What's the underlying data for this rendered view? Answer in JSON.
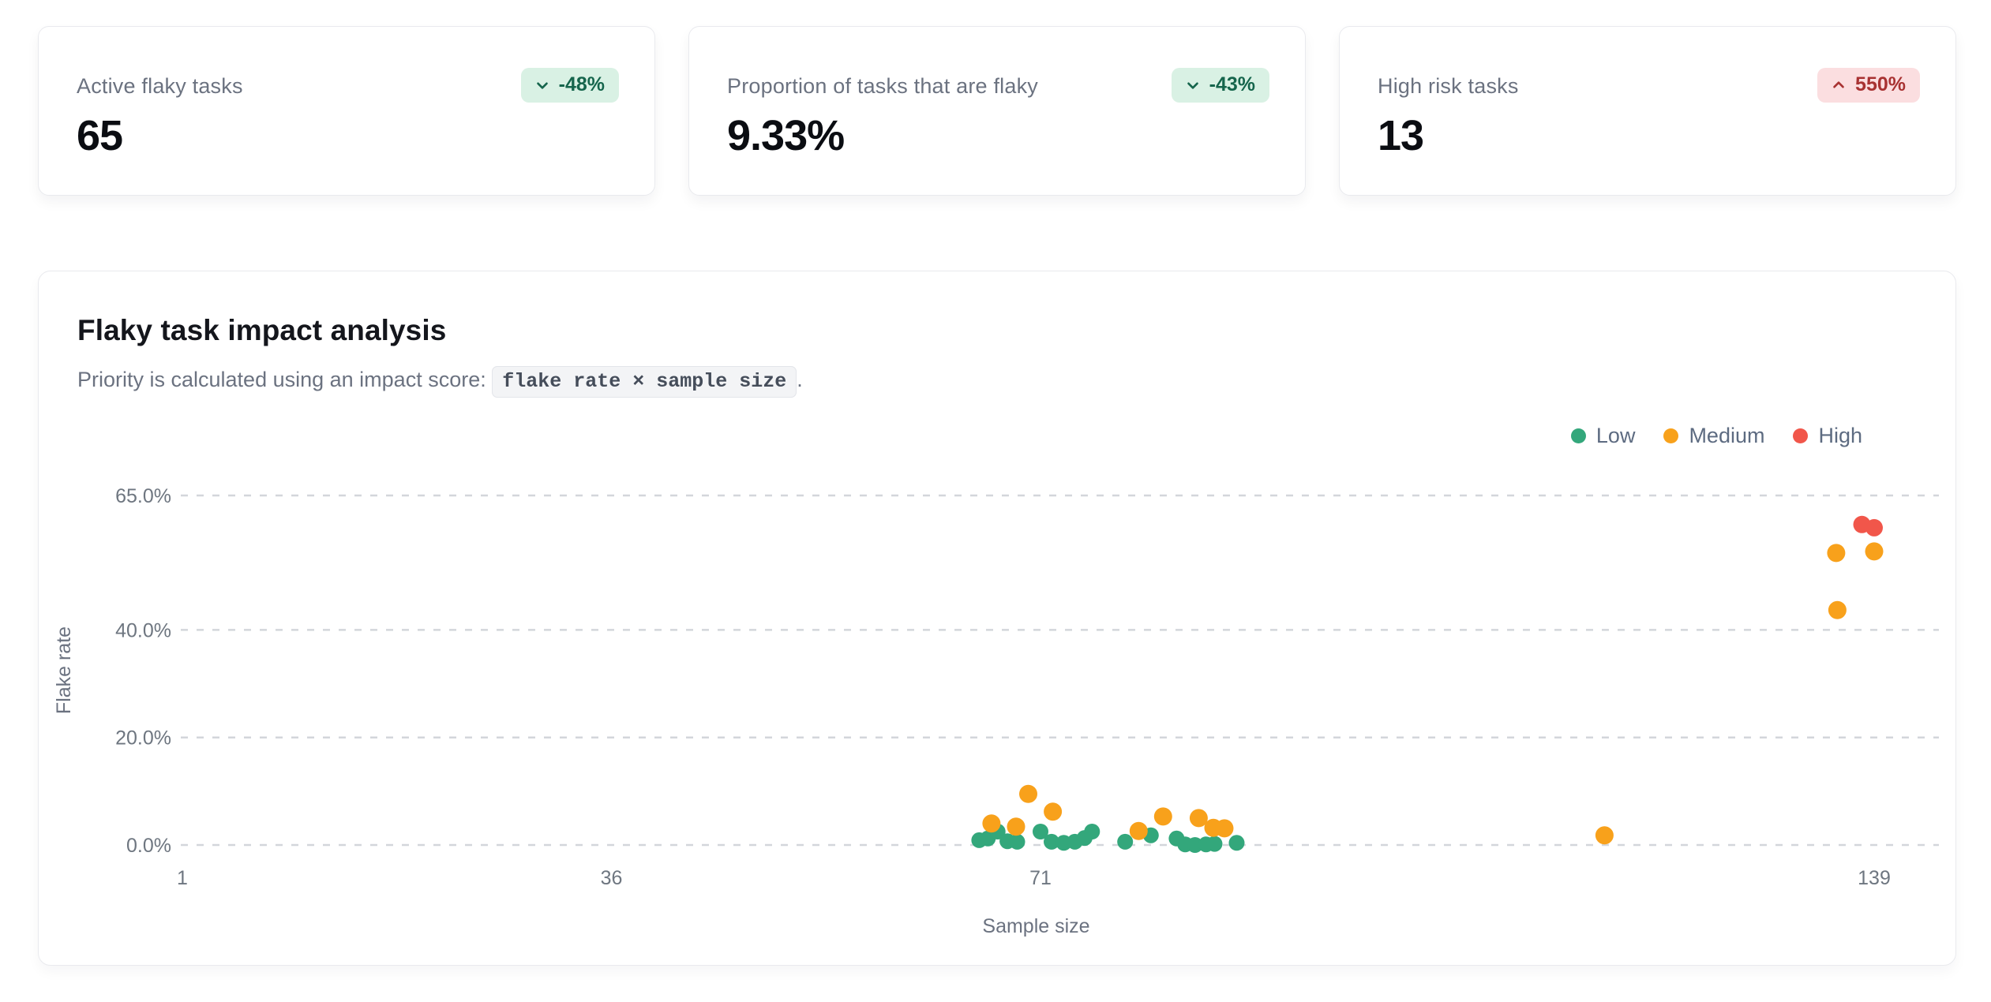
{
  "stats": [
    {
      "label": "Active flaky tasks",
      "value": "65",
      "delta": "-48%",
      "direction": "down",
      "tone": "good"
    },
    {
      "label": "Proportion of tasks that are flaky",
      "value": "9.33%",
      "delta": "-43%",
      "direction": "down",
      "tone": "good"
    },
    {
      "label": "High risk tasks",
      "value": "13",
      "delta": "550%",
      "direction": "up",
      "tone": "bad"
    }
  ],
  "chart": {
    "title": "Flaky task impact analysis",
    "subtitle_prefix": "Priority is calculated using an impact score: ",
    "formula": "flake rate × sample size",
    "subtitle_suffix": "."
  },
  "chart_data": {
    "type": "scatter",
    "title": "Flaky task impact analysis",
    "xlabel": "Sample size",
    "ylabel": "Flake rate",
    "xlim": [
      1,
      139
    ],
    "ylim": [
      0,
      65
    ],
    "x_ticks": [
      {
        "value": 1,
        "label": "1"
      },
      {
        "value": 36,
        "label": "36"
      },
      {
        "value": 71,
        "label": "71"
      },
      {
        "value": 139,
        "label": "139"
      }
    ],
    "y_ticks": [
      {
        "value": 65,
        "label": "65.0%"
      },
      {
        "value": 40,
        "label": "40.0%"
      },
      {
        "value": 20,
        "label": "20.0%"
      },
      {
        "value": 0,
        "label": "0.0%"
      }
    ],
    "grid": "horizontal-dashed",
    "legend_position": "top-right",
    "series": [
      {
        "name": "Low",
        "color": "#33a77b",
        "radius": 10,
        "points": [
          [
            66,
            0.9
          ],
          [
            66.7,
            1.2
          ],
          [
            67.5,
            2.5
          ],
          [
            68.3,
            0.7
          ],
          [
            69.1,
            0.6
          ],
          [
            71,
            2.5
          ],
          [
            71.9,
            0.6
          ],
          [
            72.9,
            0.4
          ],
          [
            73.8,
            0.6
          ],
          [
            74.6,
            1.3
          ],
          [
            75.2,
            2.5
          ],
          [
            77.9,
            0.6
          ],
          [
            80,
            1.8
          ],
          [
            82.1,
            1.2
          ],
          [
            82.8,
            0.1
          ],
          [
            83.6,
            0.0
          ],
          [
            84.5,
            0.1
          ],
          [
            85.2,
            0.2
          ],
          [
            87,
            0.4
          ]
        ]
      },
      {
        "name": "Medium",
        "color": "#f8a11b",
        "radius": 11.5,
        "points": [
          [
            67,
            4.0
          ],
          [
            69,
            3.4
          ],
          [
            70,
            9.5
          ],
          [
            72,
            6.2
          ],
          [
            79,
            2.6
          ],
          [
            81,
            5.3
          ],
          [
            83.9,
            5.0
          ],
          [
            85.1,
            3.2
          ],
          [
            86,
            3.1
          ],
          [
            117,
            1.8
          ],
          [
            135.9,
            54.3
          ],
          [
            139,
            54.6
          ],
          [
            136,
            43.7
          ]
        ]
      },
      {
        "name": "High",
        "color": "#f1564a",
        "radius": 11,
        "points": [
          [
            138,
            59.6
          ],
          [
            139,
            59.0
          ]
        ]
      }
    ]
  },
  "colors": {
    "badge_good_bg": "#d9f1e4",
    "badge_good_text": "#15654c",
    "badge_bad_bg": "#fbdee0",
    "badge_bad_text": "#a83232",
    "grid_line": "#d3d6db",
    "tick_text": "#6e7680",
    "legend_text": "#5d6b81"
  }
}
